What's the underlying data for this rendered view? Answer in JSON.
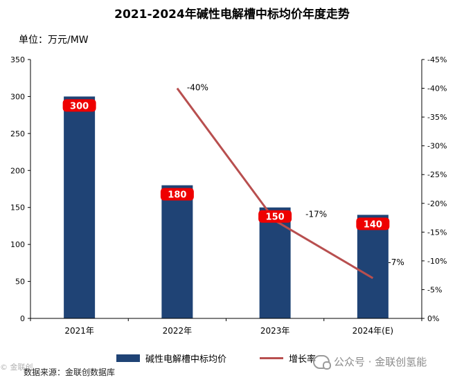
{
  "header": {
    "title": "2021-2024年碱性电解槽中标均价年度走势",
    "unit": "单位：万元/MW"
  },
  "chart_data": {
    "type": "bar",
    "categories": [
      "2021年",
      "2022年",
      "2023年",
      "2024年(E)"
    ],
    "series": [
      {
        "name": "碱性电解槽中标均价",
        "axis": "left",
        "values": [
          300,
          180,
          150,
          140
        ],
        "labels": [
          "300",
          "180",
          "150",
          "140"
        ]
      },
      {
        "name": "增长率",
        "axis": "right",
        "type": "line",
        "values": [
          null,
          -40,
          -17,
          -7
        ],
        "labels": [
          "",
          "-40%",
          "-17%",
          "-7%"
        ]
      }
    ],
    "left_axis": {
      "ylim": [
        0,
        350
      ],
      "ticks": [
        "0",
        "50",
        "100",
        "150",
        "200",
        "250",
        "300",
        "350"
      ]
    },
    "right_axis": {
      "ylim": [
        0,
        -45
      ],
      "ticks": [
        "0%",
        "-5%",
        "-10%",
        "-15%",
        "-20%",
        "-25%",
        "-30%",
        "-35%",
        "-40%",
        "-45%"
      ]
    },
    "grid": false,
    "legend": "bottom",
    "colors": {
      "bar": "#1f4375",
      "line": "#b84f4f",
      "label_bg": "#ee0000"
    }
  },
  "footer": {
    "source": "数据来源：金联创数据库",
    "watermark": "公众号 · 金联创氢能",
    "corner_mark": "© 金联创"
  }
}
